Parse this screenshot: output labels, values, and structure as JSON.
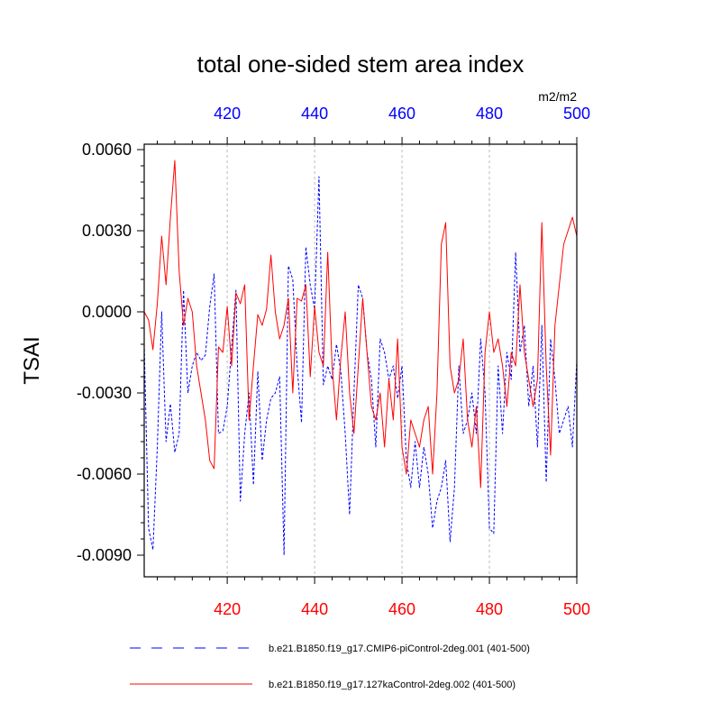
{
  "chart_data": {
    "type": "line",
    "title": "total one-sided stem area index",
    "units": "m2/m2",
    "ylabel": "TSAI",
    "xlabel": "",
    "xlim": [
      401,
      500
    ],
    "ylim": [
      -0.0098,
      0.0062
    ],
    "yticks": [
      -0.009,
      -0.006,
      -0.003,
      0.0,
      0.003,
      0.006
    ],
    "ytick_labels": [
      "-0.0090",
      "-0.0060",
      "-0.0030",
      "0.0000",
      "0.0030",
      "0.0060"
    ],
    "xticks": [
      420,
      440,
      460,
      480,
      500
    ],
    "xtick_labels_top": [
      "420",
      "440",
      "460",
      "480",
      "500"
    ],
    "xtick_labels_bottom": [
      "420",
      "440",
      "460",
      "480",
      "500"
    ],
    "grid": "vertical-dashed",
    "colors": {
      "series1": "#0000ff",
      "series2": "#ff0000",
      "top_axis": "#0000ff",
      "bottom_axis": "#ff0000"
    },
    "series": [
      {
        "name": "b.e21.B1850.f19_g17.CMIP6-piControl-2deg.001 (401-500)",
        "style": "dashed",
        "x_start": 401,
        "values": [
          -0.0012,
          -0.008,
          -0.0088,
          -0.005,
          0.0,
          -0.0048,
          -0.0034,
          -0.0052,
          -0.0045,
          0.0008,
          -0.003,
          -0.002,
          -0.0015,
          -0.0018,
          -0.0016,
          0.0002,
          0.0014,
          -0.0045,
          -0.0044,
          -0.0035,
          -0.0013,
          0.0008,
          -0.007,
          -0.0045,
          -0.003,
          -0.0064,
          -0.0022,
          -0.0055,
          -0.004,
          -0.0032,
          -0.003,
          -0.0024,
          -0.009,
          0.0017,
          0.0012,
          -0.002,
          -0.0041,
          0.0024,
          0.001,
          0.0001,
          0.005,
          -0.0027,
          -0.002,
          -0.0025,
          -0.0012,
          -0.0022,
          -0.0045,
          -0.0075,
          -0.003,
          0.001,
          0.0005,
          -0.0015,
          -0.0025,
          -0.005,
          -0.001,
          -0.0015,
          -0.0025,
          -0.002,
          -0.0032,
          -0.002,
          -0.0055,
          -0.0065,
          -0.0048,
          -0.0065,
          -0.005,
          -0.006,
          -0.008,
          -0.007,
          -0.0065,
          -0.0055,
          -0.0085,
          -0.0065,
          -0.002,
          -0.0045,
          -0.004,
          -0.003,
          -0.0045,
          -0.001,
          -0.003,
          -0.008,
          -0.0082,
          -0.002,
          -0.0045,
          -0.0015,
          -0.0025,
          0.0022,
          -0.0015,
          -0.0005,
          -0.0035,
          -0.002,
          -0.005,
          -0.0005,
          -0.0063,
          -0.001,
          -0.0025,
          -0.0045,
          -0.004,
          -0.0035,
          -0.005,
          -0.0018
        ]
      },
      {
        "name": "b.e21.B1850.f19_g17.127kaControl-2deg.002 (401-500)",
        "style": "solid",
        "x_start": 401,
        "values": [
          0.0,
          -0.0003,
          -0.0014,
          0.0003,
          0.0028,
          0.001,
          0.0035,
          0.0056,
          0.0015,
          -0.0005,
          0.0005,
          0.0,
          -0.002,
          -0.003,
          -0.004,
          -0.0055,
          -0.0058,
          -0.0013,
          -0.0015,
          0.0002,
          -0.002,
          0.0007,
          0.0003,
          0.001,
          -0.004,
          -0.002,
          -0.0001,
          -0.0005,
          0.0001,
          0.0021,
          0.0,
          -0.001,
          -0.0005,
          0.0005,
          -0.003,
          0.0005,
          0.0004,
          0.001,
          -0.0024,
          0.0002,
          -0.0015,
          -0.002,
          0.0022,
          -0.002,
          -0.004,
          -0.0017,
          0.0,
          -0.003,
          -0.0045,
          -0.002,
          0.0005,
          -0.0015,
          -0.0035,
          -0.004,
          -0.003,
          -0.005,
          -0.0025,
          -0.004,
          -0.001,
          -0.005,
          -0.006,
          -0.004,
          -0.0045,
          -0.005,
          -0.004,
          -0.0035,
          -0.006,
          -0.003,
          0.0025,
          0.0033,
          -0.002,
          -0.003,
          -0.0025,
          -0.001,
          -0.004,
          -0.005,
          -0.0035,
          -0.0065,
          -0.0015,
          0.0,
          -0.0015,
          -0.001,
          -0.002,
          -0.0035,
          -0.0015,
          -0.002,
          0.001,
          -0.0015,
          -0.0025,
          -0.0035,
          -0.0025,
          0.0033,
          -0.002,
          -0.0053,
          -0.0005,
          0.001,
          0.0025,
          0.003,
          0.0035,
          0.0028
        ]
      }
    ]
  }
}
